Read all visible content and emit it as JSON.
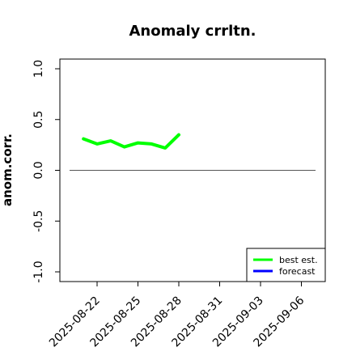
{
  "chart_data": {
    "type": "line",
    "title": "Anomaly crrltn.",
    "xlabel": "",
    "ylabel": "anom.corr.",
    "ylim": [
      -1.0,
      1.0
    ],
    "y_ticks": [
      "-1.0",
      "-0.5",
      "0.0",
      "0.5",
      "1.0"
    ],
    "x_ticks": [
      "2025-08-22",
      "2025-08-25",
      "2025-08-28",
      "2025-08-31",
      "2025-09-03",
      "2025-09-06"
    ],
    "highlighted_tick": "2025-08-28",
    "highlight_color": "#228B22",
    "reference_line": 0.0,
    "grid": false,
    "legend_position": "bottom-right",
    "series": [
      {
        "name": "best est.",
        "color": "#00ff00",
        "x": [
          "2025-08-21",
          "2025-08-22",
          "2025-08-23",
          "2025-08-24",
          "2025-08-25",
          "2025-08-26",
          "2025-08-27",
          "2025-08-28"
        ],
        "values": [
          0.31,
          0.26,
          0.29,
          0.23,
          0.27,
          0.26,
          0.22,
          0.35
        ]
      },
      {
        "name": "forecast",
        "color": "#0000ff",
        "x": [],
        "values": []
      }
    ]
  }
}
